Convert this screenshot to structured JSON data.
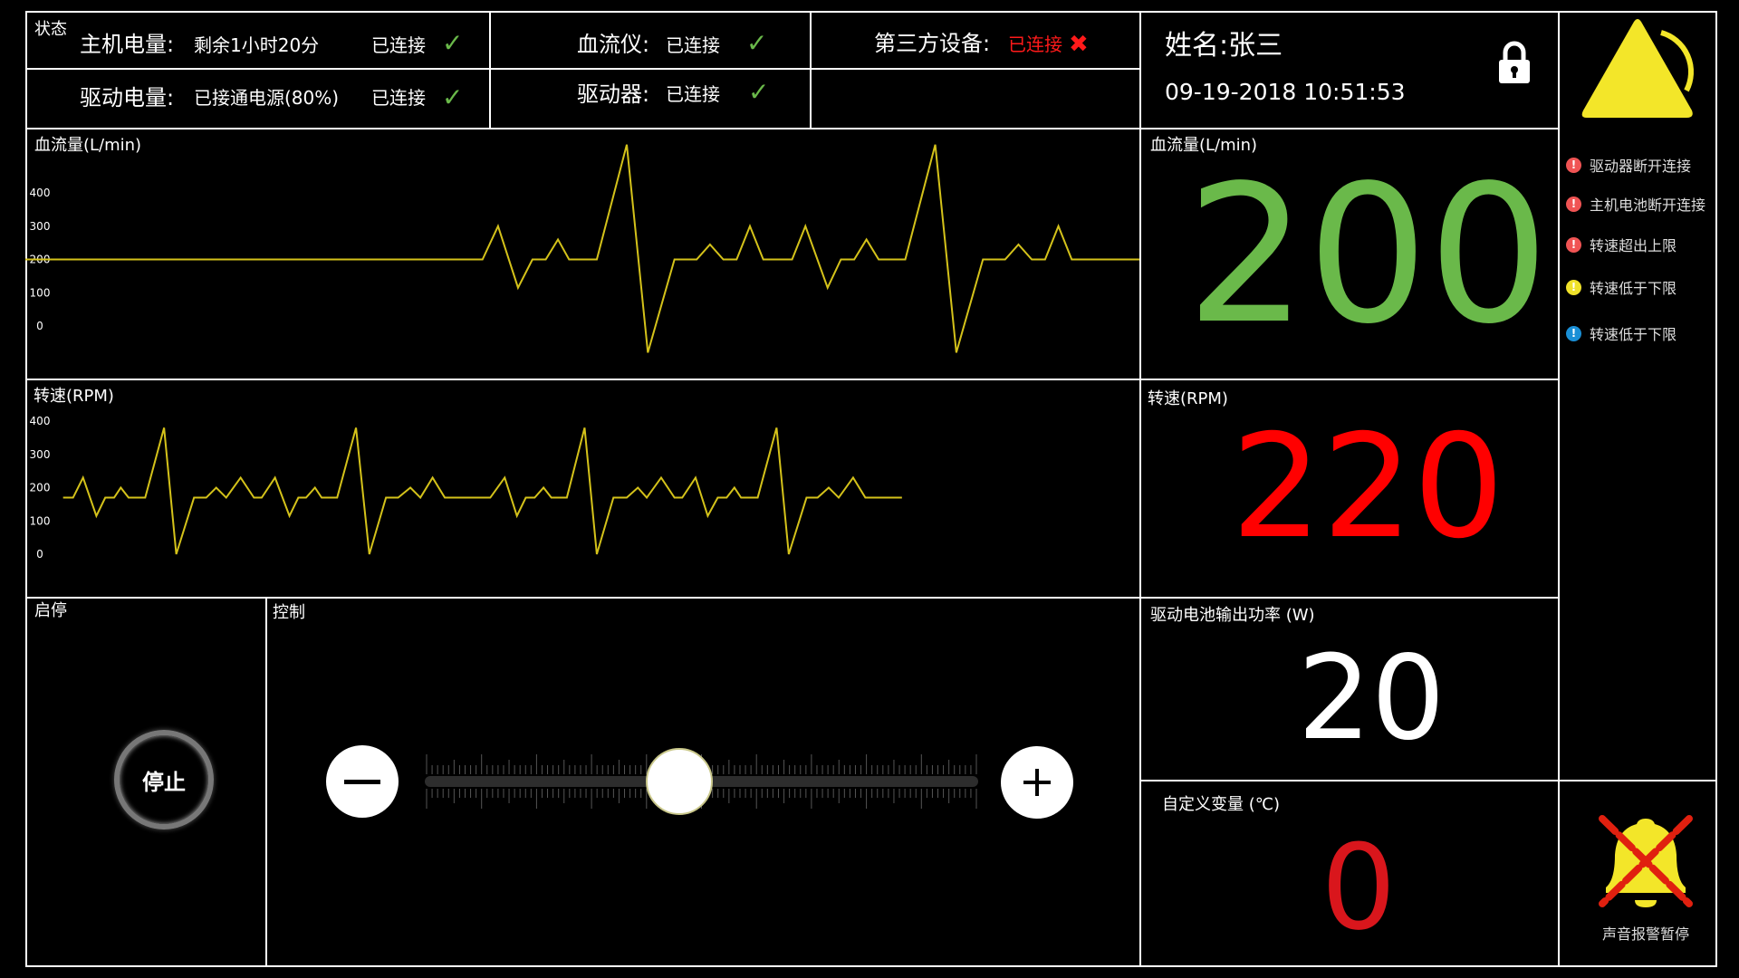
{
  "status": {
    "title": "状态",
    "host_battery_label": "主机电量:",
    "host_battery_value": "剩余1小时20分",
    "host_battery_conn": "已连接",
    "drive_battery_label": "驱动电量:",
    "drive_battery_value": "已接通电源(80%)",
    "drive_battery_conn": "已连接",
    "flowmeter_label": "血流仪:",
    "flowmeter_value": "已连接",
    "driver_label": "驱动器:",
    "driver_value": "已连接",
    "third_party_label": "第三方设备:",
    "third_party_value": "已连接",
    "ok_icon": "check-icon",
    "error_icon": "x-icon"
  },
  "patient": {
    "name": "姓名:张三",
    "datetime": "09-19-2018 10:51:53",
    "lock_icon": "lock-icon"
  },
  "chart_data": [
    {
      "type": "line",
      "title": "血流量(L/min)",
      "yticks": [
        "400",
        "300",
        "200",
        "100",
        "0"
      ],
      "ylim": [
        0,
        400
      ],
      "xlim": [
        0,
        100.4
      ],
      "color": "#d4c21a",
      "points": [
        [
          0,
          200
        ],
        [
          41.2,
          200
        ],
        [
          42.6,
          300
        ],
        [
          44.4,
          115
        ],
        [
          45.7,
          200
        ],
        [
          46.9,
          200
        ],
        [
          48,
          260
        ],
        [
          49,
          200
        ],
        [
          51.5,
          200
        ],
        [
          54.2,
          545
        ],
        [
          56.1,
          -80
        ],
        [
          58.5,
          200
        ],
        [
          60.5,
          200
        ],
        [
          61.7,
          245
        ],
        [
          62.9,
          200
        ],
        [
          64.1,
          200
        ],
        [
          65.3,
          300
        ],
        [
          66.5,
          200
        ],
        [
          69.1,
          200
        ],
        [
          70.3,
          300
        ],
        [
          72.3,
          115
        ],
        [
          73.5,
          200
        ],
        [
          74.7,
          200
        ],
        [
          75.8,
          260
        ],
        [
          76.9,
          200
        ],
        [
          79.3,
          200
        ],
        [
          82,
          545
        ],
        [
          83.9,
          -80
        ],
        [
          86.3,
          200
        ],
        [
          88.3,
          200
        ],
        [
          89.5,
          245
        ],
        [
          90.7,
          200
        ],
        [
          91.9,
          200
        ],
        [
          93.1,
          300
        ],
        [
          94.3,
          200
        ],
        [
          100.4,
          200
        ]
      ]
    },
    {
      "type": "line",
      "title": "转速(RPM)",
      "yticks": [
        "400",
        "300",
        "200",
        "100",
        "0"
      ],
      "ylim": [
        0,
        400
      ],
      "xlim": [
        0,
        100.4
      ],
      "color": "#d4c21a",
      "points": [
        [
          3.4,
          170
        ],
        [
          4.3,
          170
        ],
        [
          5.2,
          230
        ],
        [
          6.4,
          115
        ],
        [
          7.2,
          170
        ],
        [
          8,
          170
        ],
        [
          8.6,
          200
        ],
        [
          9.3,
          170
        ],
        [
          10.8,
          170
        ],
        [
          12.5,
          380
        ],
        [
          13.6,
          0
        ],
        [
          15.2,
          170
        ],
        [
          16.3,
          170
        ],
        [
          17.2,
          200
        ],
        [
          18.1,
          170
        ],
        [
          19.4,
          230
        ],
        [
          20.6,
          170
        ],
        [
          21.3,
          170
        ],
        [
          22.5,
          230
        ],
        [
          23.8,
          115
        ],
        [
          24.6,
          170
        ],
        [
          25.3,
          170
        ],
        [
          26.1,
          200
        ],
        [
          26.7,
          170
        ],
        [
          28.1,
          170
        ],
        [
          29.8,
          380
        ],
        [
          31,
          0
        ],
        [
          32.5,
          170
        ],
        [
          33.6,
          170
        ],
        [
          34.7,
          200
        ],
        [
          35.6,
          170
        ],
        [
          36.7,
          230
        ],
        [
          37.8,
          170
        ],
        [
          41.9,
          170
        ],
        [
          43.2,
          230
        ],
        [
          44.3,
          115
        ],
        [
          45.1,
          170
        ],
        [
          45.9,
          170
        ],
        [
          46.7,
          200
        ],
        [
          47.4,
          170
        ],
        [
          48.8,
          170
        ],
        [
          50.4,
          380
        ],
        [
          51.5,
          0
        ],
        [
          53,
          170
        ],
        [
          54.2,
          170
        ],
        [
          55.2,
          200
        ],
        [
          56,
          170
        ],
        [
          57.3,
          230
        ],
        [
          58.5,
          170
        ],
        [
          59.2,
          170
        ],
        [
          60.4,
          230
        ],
        [
          61.5,
          115
        ],
        [
          62.4,
          170
        ],
        [
          63.2,
          170
        ],
        [
          63.9,
          200
        ],
        [
          64.5,
          170
        ],
        [
          66,
          170
        ],
        [
          67.7,
          380
        ],
        [
          68.8,
          0
        ],
        [
          70.4,
          170
        ],
        [
          71.4,
          170
        ],
        [
          72.4,
          200
        ],
        [
          73.3,
          170
        ],
        [
          74.6,
          230
        ],
        [
          75.7,
          170
        ],
        [
          79,
          170
        ]
      ]
    }
  ],
  "readouts": {
    "flow_label": "血流量(L/min)",
    "flow_value": "200",
    "flow_color": "#6ab94a",
    "speed_label": "转速(RPM)",
    "speed_value": "220",
    "speed_color": "#ff0000",
    "power_label": "驱动电池输出功率 (W)",
    "power_value": "20",
    "power_color": "#ffffff",
    "custom_label": "自定义变量 (℃)",
    "custom_value": "0",
    "custom_color": "#d9161c"
  },
  "alarms": {
    "warning_icon": "warning-triangle-icon",
    "items": [
      {
        "text": "驱动器断开连接",
        "color": "#f05454"
      },
      {
        "text": "主机电池断开连接",
        "color": "#f05454"
      },
      {
        "text": "转速超出上限",
        "color": "#f05454"
      },
      {
        "text": "转速低于下限",
        "color": "#f0e22a"
      },
      {
        "text": "转速低于下限",
        "color": "#1a8fd6"
      }
    ],
    "mute_label": "声音报警暂停",
    "mute_icon": "bell-muted-icon"
  },
  "controls": {
    "start_stop_label": "启停",
    "stop_button": "停止",
    "control_label": "控制",
    "slider_percent": 46
  }
}
